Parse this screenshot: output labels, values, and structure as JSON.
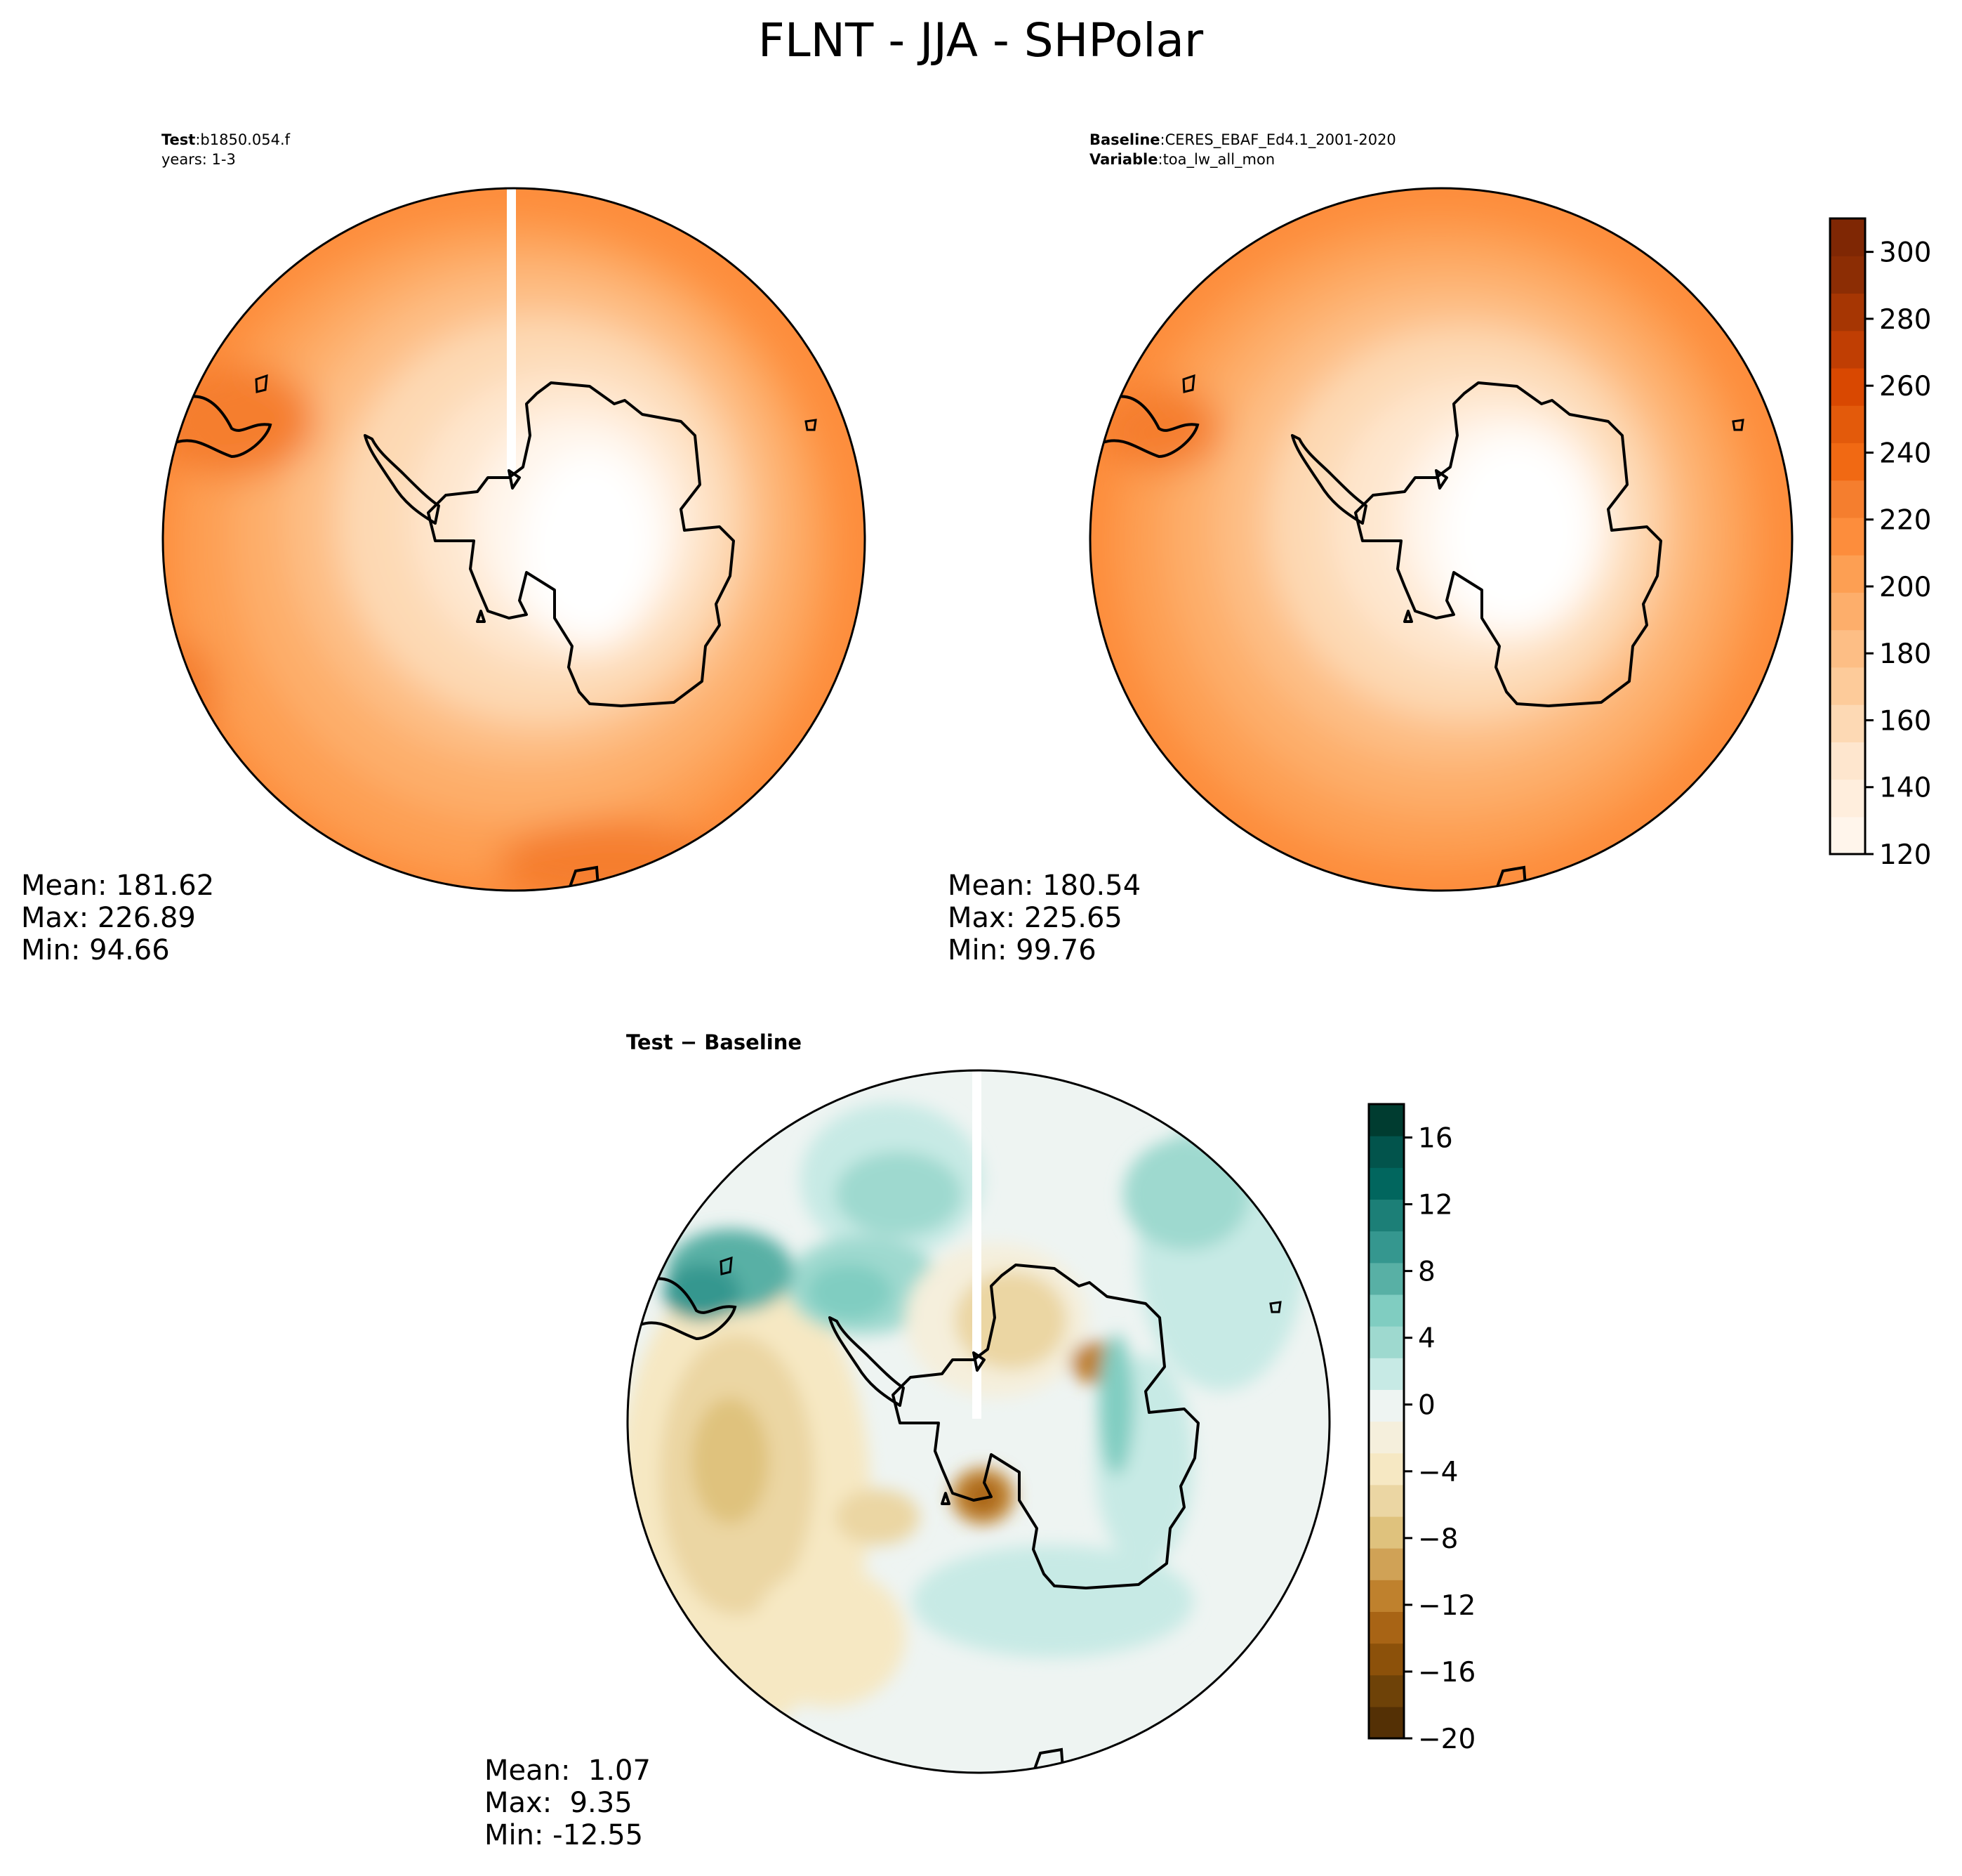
{
  "figure": {
    "title": "FLNT - JJA - SHPolar"
  },
  "panels": {
    "test": {
      "label_bold": "Test",
      "label_value": "b1850.054.f",
      "years": "years: 1-3",
      "stats": [
        "Mean: 181.62",
        "Max: 226.89",
        "Min: 94.66"
      ]
    },
    "baseline": {
      "label_bold": "Baseline",
      "label_value": "CERES_EBAF_Ed4.1_2001-2020",
      "var_bold": "Variable",
      "var_value": "toa_lw_all_mon",
      "stats": [
        "Mean: 180.54",
        "Max: 225.65",
        "Min: 99.76"
      ]
    },
    "diff": {
      "label": "Test − Baseline",
      "stats": [
        "Mean:  1.07",
        "Max:  9.35",
        "Min: -12.55"
      ]
    }
  },
  "colors": {
    "oranges": [
      "#fff5eb",
      "#ffeedd",
      "#fee6ce",
      "#fdd9b4",
      "#fdcb9a",
      "#fdbe85",
      "#fdae6b",
      "#fd9f53",
      "#fd8d3c",
      "#f57e2e",
      "#f16913",
      "#e35a0b",
      "#d94801",
      "#c03e03",
      "#a63603",
      "#8c2d04",
      "#7f2704"
    ],
    "brbg": [
      "#543005",
      "#6e4208",
      "#8c510a",
      "#a86415",
      "#bf812d",
      "#d0a256",
      "#dfc27d",
      "#ebd6a3",
      "#f6e8c3",
      "#f5efdc",
      "#eef4f2",
      "#c7eae5",
      "#9ed9cf",
      "#80cdc1",
      "#58b0a5",
      "#35978f",
      "#1c7f77",
      "#01665e",
      "#02544c",
      "#003c30"
    ]
  },
  "chart_data": [
    {
      "type": "heatmap",
      "projection": "south-polar-stereographic",
      "panel": "test",
      "field": "FLNT",
      "season": "JJA",
      "colormap": "Oranges",
      "stats": {
        "mean": 181.62,
        "max": 226.89,
        "min": 94.66
      }
    },
    {
      "type": "heatmap",
      "projection": "south-polar-stereographic",
      "panel": "baseline",
      "field": "toa_lw_all_mon",
      "season": "JJA",
      "colormap": "Oranges",
      "stats": {
        "mean": 180.54,
        "max": 225.65,
        "min": 99.76
      },
      "colorbar": {
        "range": [
          120,
          310
        ],
        "ticks": [
          120,
          140,
          160,
          180,
          200,
          220,
          240,
          260,
          280,
          300
        ],
        "tick_labels": [
          "120",
          "140",
          "160",
          "180",
          "200",
          "220",
          "240",
          "260",
          "280",
          "300"
        ]
      }
    },
    {
      "type": "heatmap",
      "projection": "south-polar-stereographic",
      "panel": "diff",
      "colormap": "BrBG",
      "stats": {
        "mean": 1.07,
        "max": 9.35,
        "min": -12.55
      },
      "colorbar": {
        "range": [
          -20,
          18
        ],
        "ticks": [
          -20,
          -16,
          -12,
          -8,
          -4,
          0,
          4,
          8,
          12,
          16
        ],
        "tick_labels": [
          "−20",
          "−16",
          "−12",
          "−8",
          "−4",
          "0",
          "4",
          "8",
          "12",
          "16"
        ]
      }
    }
  ]
}
